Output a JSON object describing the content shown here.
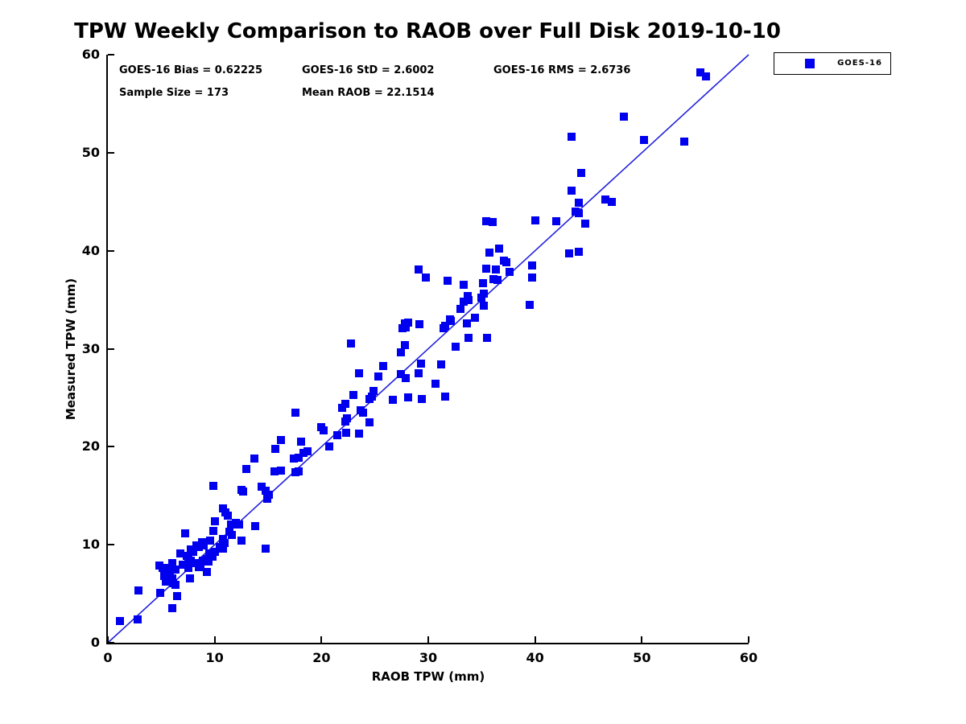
{
  "chart_data": {
    "type": "scatter",
    "title": "TPW Weekly Comparison to RAOB over Full Disk 2019-10-10",
    "xlabel": "RAOB TPW (mm)",
    "ylabel": "Measured TPW (mm)",
    "xlim": [
      0,
      60
    ],
    "ylim": [
      0,
      60
    ],
    "xticks": [
      0,
      10,
      20,
      30,
      40,
      50,
      60
    ],
    "yticks": [
      0,
      10,
      20,
      30,
      40,
      50,
      60
    ],
    "grid": false,
    "legend_position": "outside-top-right",
    "annotations": {
      "bias": "GOES-16 Bias = 0.62225",
      "std": "GOES-16 StD = 2.6002",
      "rms": "GOES-16 RMS = 2.6736",
      "sample_size": "Sample Size = 173",
      "mean_raob": "Mean RAOB = 22.1514"
    },
    "reference_line": {
      "type": "identity",
      "from": [
        0,
        0
      ],
      "to": [
        60,
        60
      ],
      "color": "#2222dd"
    },
    "series": [
      {
        "name": "GOES-16",
        "marker": "square",
        "color": "#0000ee",
        "points": [
          [
            1.1,
            2.2
          ],
          [
            2.8,
            2.4
          ],
          [
            2.9,
            5.3
          ],
          [
            4.9,
            5.1
          ],
          [
            5.4,
            6.2
          ],
          [
            6.1,
            6.1
          ],
          [
            6.3,
            5.9
          ],
          [
            6.5,
            4.8
          ],
          [
            6.0,
            3.5
          ],
          [
            5.3,
            6.8
          ],
          [
            5.8,
            6.8
          ],
          [
            6.0,
            6.6
          ],
          [
            7.7,
            6.6
          ],
          [
            5.6,
            7.2
          ],
          [
            9.3,
            7.2
          ],
          [
            5.1,
            7.6
          ],
          [
            5.4,
            7.4
          ],
          [
            5.8,
            7.6
          ],
          [
            6.3,
            7.5
          ],
          [
            7.5,
            7.6
          ],
          [
            8.5,
            7.7
          ],
          [
            4.8,
            7.9
          ],
          [
            6.0,
            8.1
          ],
          [
            7.0,
            8.0
          ],
          [
            8.3,
            8.1
          ],
          [
            8.7,
            8.0
          ],
          [
            9.4,
            8.3
          ],
          [
            7.5,
            8.5
          ],
          [
            7.8,
            8.4
          ],
          [
            8.9,
            8.4
          ],
          [
            9.3,
            8.5
          ],
          [
            6.8,
            9.1
          ],
          [
            7.4,
            8.9
          ],
          [
            9.5,
            9.1
          ],
          [
            9.8,
            8.8
          ],
          [
            7.8,
            9.5
          ],
          [
            8.0,
            9.3
          ],
          [
            10.0,
            9.3
          ],
          [
            8.3,
            9.9
          ],
          [
            8.5,
            9.8
          ],
          [
            9.0,
            9.9
          ],
          [
            10.5,
            9.8
          ],
          [
            10.8,
            9.6
          ],
          [
            14.8,
            9.6
          ],
          [
            8.8,
            10.3
          ],
          [
            9.6,
            10.4
          ],
          [
            10.8,
            10.6
          ],
          [
            10.9,
            10.2
          ],
          [
            12.5,
            10.4
          ],
          [
            7.2,
            11.2
          ],
          [
            9.9,
            11.4
          ],
          [
            11.4,
            11.3
          ],
          [
            11.6,
            11.0
          ],
          [
            10.0,
            12.4
          ],
          [
            11.5,
            12.1
          ],
          [
            12.0,
            12.2
          ],
          [
            12.3,
            12.1
          ],
          [
            13.8,
            11.9
          ],
          [
            10.8,
            13.7
          ],
          [
            11.0,
            13.3
          ],
          [
            11.2,
            13.0
          ],
          [
            9.9,
            16.0
          ],
          [
            12.5,
            15.6
          ],
          [
            12.7,
            15.4
          ],
          [
            14.4,
            15.9
          ],
          [
            14.8,
            15.5
          ],
          [
            14.9,
            14.7
          ],
          [
            15.1,
            15.1
          ],
          [
            13.0,
            17.7
          ],
          [
            13.7,
            18.8
          ],
          [
            15.6,
            17.5
          ],
          [
            16.2,
            17.6
          ],
          [
            17.6,
            17.4
          ],
          [
            17.9,
            17.5
          ],
          [
            17.4,
            18.8
          ],
          [
            17.9,
            18.9
          ],
          [
            15.7,
            19.8
          ],
          [
            18.3,
            19.4
          ],
          [
            18.7,
            19.5
          ],
          [
            16.2,
            20.7
          ],
          [
            18.1,
            20.5
          ],
          [
            17.6,
            23.5
          ],
          [
            20.0,
            22.0
          ],
          [
            20.2,
            21.7
          ],
          [
            21.5,
            21.2
          ],
          [
            20.7,
            20.0
          ],
          [
            22.3,
            21.4
          ],
          [
            23.5,
            21.3
          ],
          [
            22.2,
            22.6
          ],
          [
            22.4,
            22.9
          ],
          [
            24.5,
            22.5
          ],
          [
            21.9,
            24.0
          ],
          [
            22.2,
            24.4
          ],
          [
            23.7,
            23.7
          ],
          [
            23.9,
            23.5
          ],
          [
            24.5,
            24.9
          ],
          [
            24.7,
            25.1
          ],
          [
            23.0,
            25.3
          ],
          [
            24.9,
            25.7
          ],
          [
            23.5,
            27.5
          ],
          [
            25.3,
            27.2
          ],
          [
            22.8,
            30.5
          ],
          [
            25.8,
            28.2
          ],
          [
            26.7,
            24.8
          ],
          [
            28.1,
            25.0
          ],
          [
            29.4,
            24.9
          ],
          [
            27.4,
            27.4
          ],
          [
            27.9,
            27.0
          ],
          [
            29.1,
            27.5
          ],
          [
            27.4,
            29.6
          ],
          [
            29.3,
            28.5
          ],
          [
            27.8,
            30.4
          ],
          [
            27.6,
            32.1
          ],
          [
            27.8,
            32.6
          ],
          [
            27.9,
            32.2
          ],
          [
            28.1,
            32.7
          ],
          [
            29.2,
            32.5
          ],
          [
            29.1,
            38.1
          ],
          [
            29.8,
            37.3
          ],
          [
            30.7,
            26.4
          ],
          [
            31.6,
            25.1
          ],
          [
            31.2,
            28.4
          ],
          [
            32.6,
            30.2
          ],
          [
            33.8,
            31.1
          ],
          [
            31.4,
            32.1
          ],
          [
            31.6,
            32.3
          ],
          [
            32.0,
            33.0
          ],
          [
            32.1,
            32.8
          ],
          [
            34.4,
            33.2
          ],
          [
            33.6,
            32.6
          ],
          [
            33.0,
            34.1
          ],
          [
            33.3,
            34.8
          ],
          [
            33.7,
            35.4
          ],
          [
            33.8,
            35.0
          ],
          [
            31.8,
            36.9
          ],
          [
            33.3,
            36.5
          ],
          [
            35.5,
            31.1
          ],
          [
            35.2,
            34.4
          ],
          [
            35.0,
            35.2
          ],
          [
            35.2,
            35.6
          ],
          [
            35.1,
            36.7
          ],
          [
            36.1,
            37.1
          ],
          [
            36.5,
            37.0
          ],
          [
            35.4,
            38.2
          ],
          [
            36.3,
            38.1
          ],
          [
            37.6,
            37.8
          ],
          [
            37.1,
            39.0
          ],
          [
            37.3,
            38.8
          ],
          [
            35.7,
            39.8
          ],
          [
            36.6,
            40.2
          ],
          [
            35.4,
            43.0
          ],
          [
            36.0,
            42.9
          ],
          [
            39.5,
            34.5
          ],
          [
            39.7,
            37.3
          ],
          [
            39.7,
            38.5
          ],
          [
            40.0,
            43.1
          ],
          [
            42.0,
            43.0
          ],
          [
            43.2,
            39.7
          ],
          [
            44.1,
            39.9
          ],
          [
            43.4,
            46.1
          ],
          [
            43.8,
            44.0
          ],
          [
            44.1,
            43.8
          ],
          [
            44.1,
            44.9
          ],
          [
            44.7,
            42.8
          ],
          [
            44.3,
            47.9
          ],
          [
            46.6,
            45.2
          ],
          [
            47.2,
            45.0
          ],
          [
            43.4,
            51.6
          ],
          [
            48.3,
            53.7
          ],
          [
            50.2,
            51.3
          ],
          [
            54.0,
            51.1
          ],
          [
            55.5,
            58.2
          ],
          [
            56.0,
            57.8
          ]
        ]
      }
    ]
  },
  "legend": {
    "entries": [
      {
        "label": "GOES-16",
        "marker_color": "#0000ee"
      }
    ]
  }
}
